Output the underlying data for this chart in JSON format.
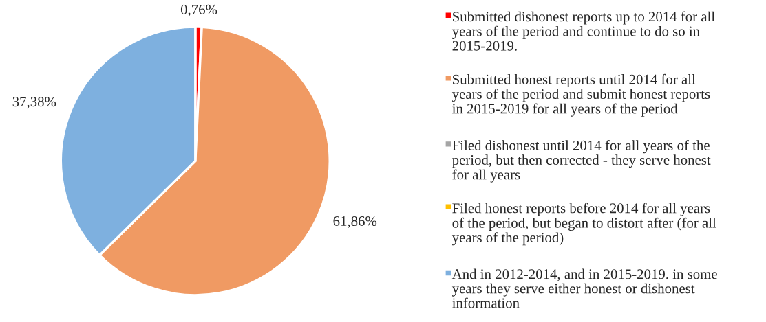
{
  "chart_data": {
    "type": "pie",
    "categories": [
      "Submitted dishonest reports up to 2014 for all\nyears of the period and continue to do so in\n2015-2019.",
      "Submitted honest reports until 2014 for all\nyears of the period and submit honest reports\nin 2015-2019 for all years of the period",
      "Filed dishonest until 2014 for all years of the\nperiod, but then corrected - they serve honest\nfor all years",
      "Filed honest reports before 2014 for all years\nof the period, but began to distort after (for all\nyears of the period)",
      "And in 2012-2014, and in 2015-2019. in some\nyears they serve either honest or dishonest\ninformation"
    ],
    "values": [
      0.76,
      61.86,
      0,
      0,
      37.38
    ],
    "value_labels": [
      "0,76%",
      "61,86%",
      null,
      null,
      "37,38%"
    ],
    "colors": [
      "#ff0000",
      "#f09a63",
      "#a5a5a5",
      "#ffc000",
      "#7eb0df"
    ],
    "legend": "right"
  }
}
